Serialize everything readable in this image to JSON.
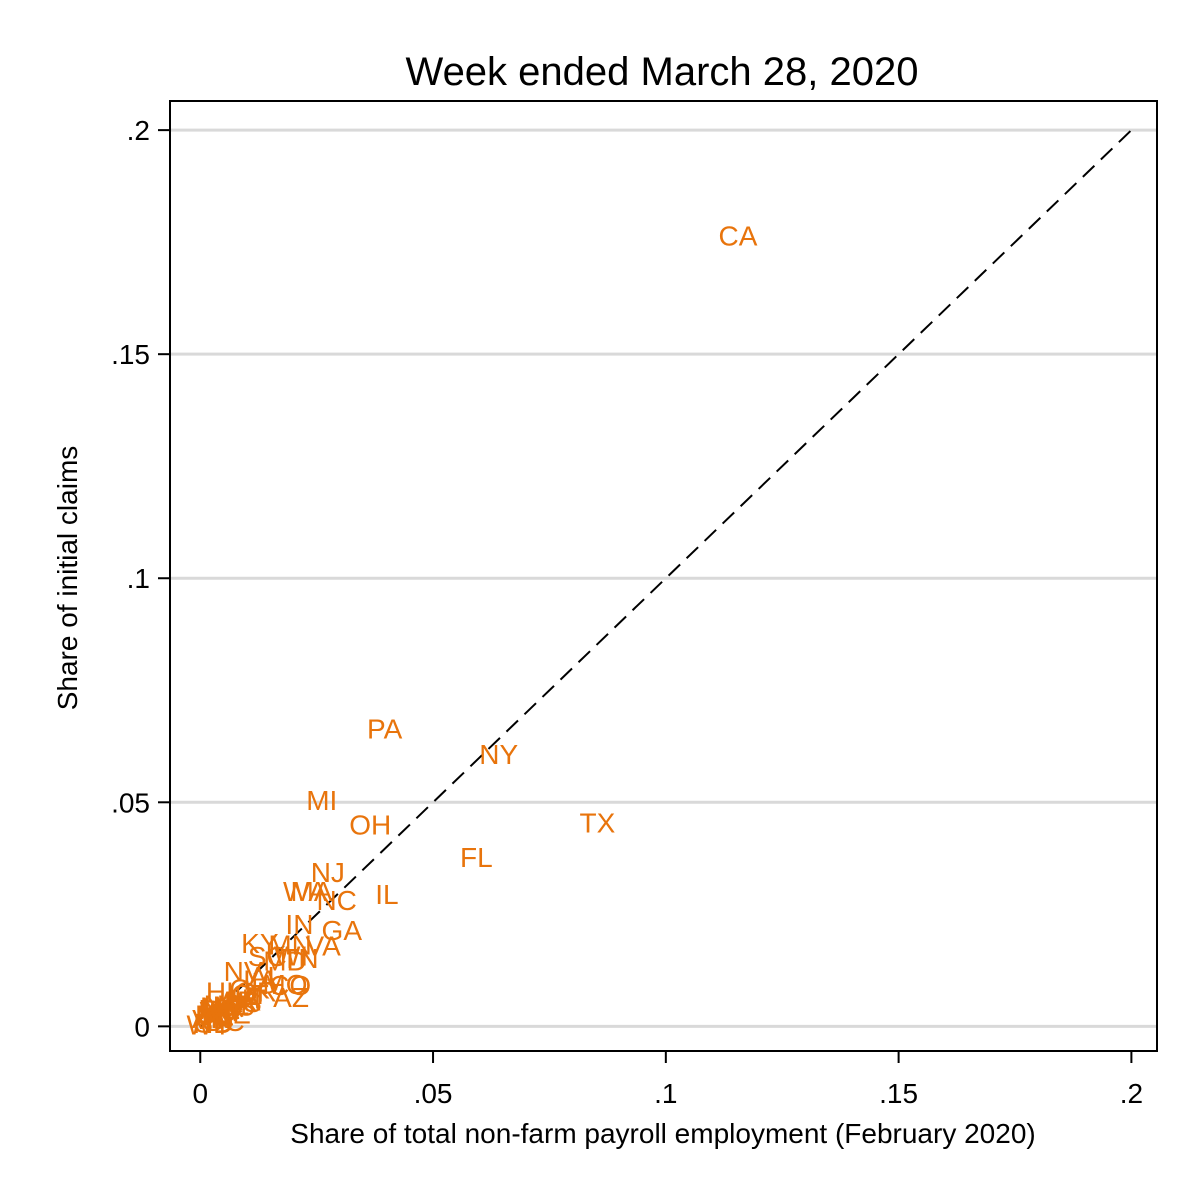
{
  "chart_data": {
    "type": "scatter",
    "title": "Week ended March 28, 2020",
    "xlabel": "Share of total non-farm payroll employment (February 2020)",
    "ylabel": "Share of initial claims",
    "xlim": [
      -0.0065,
      0.2055
    ],
    "ylim": [
      -0.0055,
      0.2065
    ],
    "xticks": [
      0,
      0.05,
      0.1,
      0.15,
      0.2
    ],
    "yticks": [
      0,
      0.05,
      0.1,
      0.15,
      0.2
    ],
    "xtick_labels": [
      "0",
      ".05",
      ".1",
      ".15",
      ".2"
    ],
    "ytick_labels": [
      "0",
      ".05",
      ".1",
      ".15",
      ".2"
    ],
    "grid": "horizontal",
    "reference_line": {
      "style": "dashed",
      "from": [
        0,
        0
      ],
      "to": [
        0.2,
        0.2
      ]
    },
    "marker_color": "#E8740C",
    "points": [
      {
        "label": "CA",
        "x": 0.1155,
        "y": 0.1765
      },
      {
        "label": "PA",
        "x": 0.0396,
        "y": 0.0665
      },
      {
        "label": "NY",
        "x": 0.0641,
        "y": 0.0608
      },
      {
        "label": "MI",
        "x": 0.0261,
        "y": 0.0505
      },
      {
        "label": "OH",
        "x": 0.0365,
        "y": 0.0451
      },
      {
        "label": "TX",
        "x": 0.0853,
        "y": 0.0455
      },
      {
        "label": "FL",
        "x": 0.0593,
        "y": 0.0378
      },
      {
        "label": "NJ",
        "x": 0.0274,
        "y": 0.0345
      },
      {
        "label": "IL",
        "x": 0.0401,
        "y": 0.0295
      },
      {
        "label": "WA",
        "x": 0.0225,
        "y": 0.0302
      },
      {
        "label": "MA",
        "x": 0.0239,
        "y": 0.0302
      },
      {
        "label": "NC",
        "x": 0.0293,
        "y": 0.0282
      },
      {
        "label": "IN",
        "x": 0.0213,
        "y": 0.0228
      },
      {
        "label": "GA",
        "x": 0.0304,
        "y": 0.0215
      },
      {
        "label": "VA",
        "x": 0.0264,
        "y": 0.018
      },
      {
        "label": "KY",
        "x": 0.0128,
        "y": 0.0186
      },
      {
        "label": "MN",
        "x": 0.0193,
        "y": 0.0183
      },
      {
        "label": "SC",
        "x": 0.0144,
        "y": 0.0157
      },
      {
        "label": "WI",
        "x": 0.0195,
        "y": 0.0158
      },
      {
        "label": "TN",
        "x": 0.0214,
        "y": 0.0152
      },
      {
        "label": "MD",
        "x": 0.0182,
        "y": 0.0147
      },
      {
        "label": "NV",
        "x": 0.0092,
        "y": 0.0124
      },
      {
        "label": "AL",
        "x": 0.0141,
        "y": 0.0112
      },
      {
        "label": "LA",
        "x": 0.0129,
        "y": 0.0105
      },
      {
        "label": "MO",
        "x": 0.0182,
        "y": 0.0095
      },
      {
        "label": "CO",
        "x": 0.0193,
        "y": 0.0092
      },
      {
        "label": "OK",
        "x": 0.0106,
        "y": 0.0085
      },
      {
        "label": "OR",
        "x": 0.012,
        "y": 0.0078
      },
      {
        "label": "CT",
        "x": 0.0107,
        "y": 0.0072
      },
      {
        "label": "UT",
        "x": 0.0101,
        "y": 0.0062
      },
      {
        "label": "AZ",
        "x": 0.0195,
        "y": 0.0066
      },
      {
        "label": "IA",
        "x": 0.0101,
        "y": 0.0058
      },
      {
        "label": "KS",
        "x": 0.0092,
        "y": 0.0054
      },
      {
        "label": "AR",
        "x": 0.0081,
        "y": 0.0058
      },
      {
        "label": "HI",
        "x": 0.0042,
        "y": 0.0078
      },
      {
        "label": "NM",
        "x": 0.0054,
        "y": 0.0049
      },
      {
        "label": "MS",
        "x": 0.0072,
        "y": 0.0046
      },
      {
        "label": "NH",
        "x": 0.0043,
        "y": 0.0044
      },
      {
        "label": "ME",
        "x": 0.0041,
        "y": 0.0039
      },
      {
        "label": "RI",
        "x": 0.0032,
        "y": 0.0038
      },
      {
        "label": "ID",
        "x": 0.0048,
        "y": 0.0031
      },
      {
        "label": "NE",
        "x": 0.0067,
        "y": 0.0029
      },
      {
        "label": "WV",
        "x": 0.0047,
        "y": 0.0034
      },
      {
        "label": "MT",
        "x": 0.0032,
        "y": 0.0026
      },
      {
        "label": "DE",
        "x": 0.0031,
        "y": 0.0024
      },
      {
        "label": "AK",
        "x": 0.0022,
        "y": 0.0019
      },
      {
        "label": "VT",
        "x": 0.0021,
        "y": 0.0016
      },
      {
        "label": "DC",
        "x": 0.0052,
        "y": 0.0012
      },
      {
        "label": "SD",
        "x": 0.0029,
        "y": 0.0009
      },
      {
        "label": "ND",
        "x": 0.0028,
        "y": 0.0008
      },
      {
        "label": "WY",
        "x": 0.0019,
        "y": 0.0004
      }
    ]
  }
}
